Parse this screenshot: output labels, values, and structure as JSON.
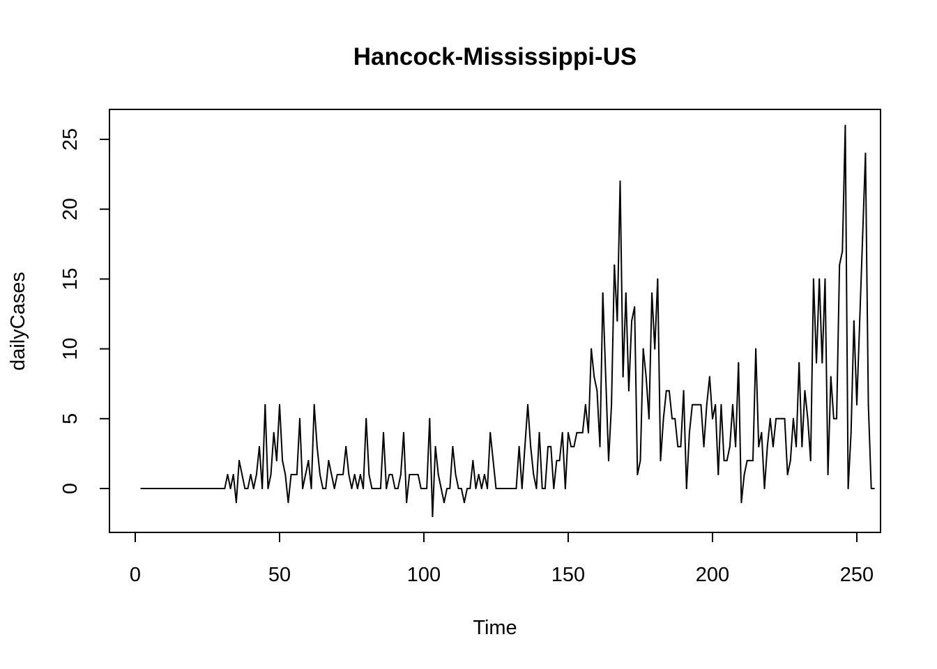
{
  "chart_data": {
    "type": "line",
    "title": "Hancock-Mississippi-US",
    "xlabel": "Time",
    "ylabel": "dailyCases",
    "xlim": [
      0,
      250
    ],
    "ylim": [
      -2,
      26
    ],
    "x_ticks": [
      "0",
      "50",
      "100",
      "150",
      "200",
      "250"
    ],
    "y_ticks": [
      "0",
      "5",
      "10",
      "15",
      "20",
      "25"
    ],
    "x_start": 2,
    "values": [
      0,
      0,
      0,
      0,
      0,
      0,
      0,
      0,
      0,
      0,
      0,
      0,
      0,
      0,
      0,
      0,
      0,
      0,
      0,
      0,
      0,
      0,
      0,
      0,
      0,
      0,
      0,
      0,
      0,
      0,
      1,
      0,
      1,
      -1,
      2,
      1,
      0,
      0,
      1,
      0,
      1,
      3,
      0,
      6,
      0,
      1,
      4,
      2,
      6,
      2,
      1,
      -1,
      1,
      1,
      1,
      5,
      0,
      1,
      2,
      0,
      6,
      3,
      1,
      0,
      0,
      2,
      1,
      0,
      1,
      1,
      1,
      3,
      1,
      0,
      1,
      0,
      1,
      0,
      5,
      1,
      0,
      0,
      0,
      0,
      4,
      0,
      1,
      1,
      0,
      0,
      1,
      4,
      -1,
      1,
      1,
      1,
      1,
      0,
      0,
      0,
      5,
      -2,
      3,
      1,
      0,
      -1,
      0,
      0,
      3,
      1,
      0,
      0,
      -1,
      0,
      0,
      2,
      0,
      1,
      0,
      1,
      0,
      4,
      2,
      0,
      0,
      0,
      0,
      0,
      0,
      0,
      0,
      3,
      0,
      3,
      6,
      3,
      1,
      0,
      4,
      0,
      0,
      3,
      3,
      0,
      2,
      2,
      4,
      0,
      4,
      3,
      3,
      4,
      4,
      4,
      6,
      4,
      10,
      8,
      7,
      3,
      14,
      8,
      2,
      6,
      16,
      12,
      22,
      8,
      14,
      7,
      12,
      13,
      1,
      2,
      10,
      8,
      5,
      14,
      10,
      15,
      2,
      5,
      7,
      7,
      5,
      5,
      3,
      3,
      7,
      0,
      4,
      6,
      6,
      6,
      6,
      3,
      6,
      8,
      5,
      6,
      1,
      6,
      2,
      2,
      3,
      6,
      3,
      9,
      -1,
      1,
      2,
      2,
      2,
      10,
      3,
      4,
      0,
      3,
      5,
      3,
      5,
      5,
      5,
      5,
      1,
      2,
      5,
      3,
      9,
      3,
      7,
      5,
      2,
      15,
      9,
      15,
      9,
      15,
      1,
      8,
      5,
      5,
      16,
      17,
      26,
      0,
      4,
      12,
      6,
      12,
      18,
      24,
      6,
      0,
      0
    ]
  }
}
